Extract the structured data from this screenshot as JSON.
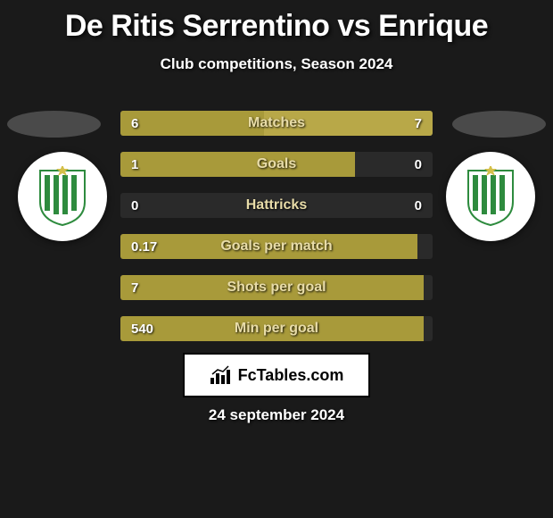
{
  "title": "De Ritis Serrentino vs Enrique",
  "subtitle": "Club competitions, Season 2024",
  "date": "24 september 2024",
  "brand": "FcTables.com",
  "colors": {
    "bg": "#1a1a1a",
    "bar_bg": "#2a2a2a",
    "left_fill": "#a89a3a",
    "right_fill": "#b8a848",
    "label": "#e8dca8",
    "value": "#ffffff",
    "crest_green": "#2e8b3e",
    "crest_white": "#ffffff",
    "oval_left": "#4a4a4a",
    "oval_right": "#4a4a4a"
  },
  "stats": [
    {
      "label": "Matches",
      "left_val": "6",
      "right_val": "7",
      "left_pct": 46,
      "right_pct": 54
    },
    {
      "label": "Goals",
      "left_val": "1",
      "right_val": "0",
      "left_pct": 75,
      "right_pct": 0
    },
    {
      "label": "Hattricks",
      "left_val": "0",
      "right_val": "0",
      "left_pct": 0,
      "right_pct": 0
    },
    {
      "label": "Goals per match",
      "left_val": "0.17",
      "right_val": "",
      "left_pct": 95,
      "right_pct": 0
    },
    {
      "label": "Shots per goal",
      "left_val": "7",
      "right_val": "",
      "left_pct": 97,
      "right_pct": 0
    },
    {
      "label": "Min per goal",
      "left_val": "540",
      "right_val": "",
      "left_pct": 97,
      "right_pct": 0
    }
  ]
}
